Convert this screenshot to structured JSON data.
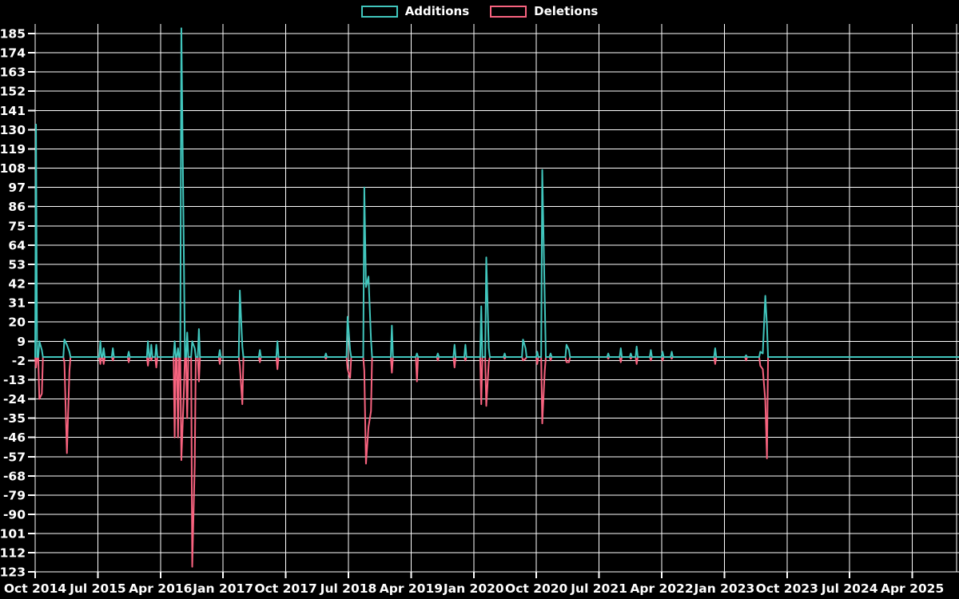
{
  "colors": {
    "additions": "#41c6bd",
    "deletions": "#f8637f",
    "background": "#000000",
    "grid": "#ffffff",
    "text": "#ffffff"
  },
  "chart_data": {
    "type": "line",
    "title": "",
    "xlabel": "",
    "ylabel": "",
    "legend_position": "top-center",
    "grid": true,
    "series": [
      {
        "name": "Additions",
        "color_key": "additions",
        "direction": "up"
      },
      {
        "name": "Deletions",
        "color_key": "deletions",
        "direction": "down"
      }
    ],
    "y_axis": {
      "tick_values": [
        185,
        174,
        163,
        152,
        141,
        130,
        119,
        108,
        97,
        86,
        75,
        64,
        53,
        42,
        31,
        20,
        9,
        -2,
        -13,
        -24,
        -35,
        -46,
        -57,
        -68,
        -79,
        -90,
        -101,
        -112,
        -123
      ]
    },
    "x_axis": {
      "tick_labels": [
        "Oct 2014",
        "Jul 2015",
        "Apr 2016",
        "Jan 2017",
        "Oct 2017",
        "Jul 2018",
        "Apr 2019",
        "Jan 2020",
        "Oct 2020",
        "Jul 2021",
        "Apr 2022",
        "Jan 2023",
        "Oct 2023",
        "Jul 2024",
        "Apr 2025"
      ],
      "start_year_decimal": 2014.75,
      "years_per_tick": 0.75,
      "end_year_decimal": 2025.81
    },
    "points_format": [
      "t_decimal_year",
      "additions",
      "deletions_magnitude"
    ],
    "points": [
      [
        2014.76,
        133,
        6
      ],
      [
        2014.8,
        9,
        24
      ],
      [
        2014.83,
        4,
        21
      ],
      [
        2015.1,
        10,
        3
      ],
      [
        2015.13,
        7,
        55
      ],
      [
        2015.16,
        3,
        8
      ],
      [
        2015.53,
        9,
        4
      ],
      [
        2015.57,
        5,
        4
      ],
      [
        2015.68,
        5,
        2
      ],
      [
        2015.87,
        3,
        3
      ],
      [
        2016.1,
        9,
        5
      ],
      [
        2016.14,
        7,
        2
      ],
      [
        2016.2,
        7,
        6
      ],
      [
        2016.42,
        9,
        46
      ],
      [
        2016.46,
        5,
        46
      ],
      [
        2016.5,
        188,
        59
      ],
      [
        2016.53,
        57,
        20
      ],
      [
        2016.57,
        14,
        35
      ],
      [
        2016.63,
        9,
        120
      ],
      [
        2016.66,
        5,
        62
      ],
      [
        2016.71,
        16,
        14
      ],
      [
        2016.96,
        4,
        4
      ],
      [
        2017.2,
        38,
        5
      ],
      [
        2017.23,
        6,
        27
      ],
      [
        2017.44,
        4,
        3
      ],
      [
        2017.65,
        9,
        7
      ],
      [
        2018.23,
        2,
        1
      ],
      [
        2018.49,
        23,
        7
      ],
      [
        2018.52,
        4,
        12
      ],
      [
        2018.69,
        97,
        8
      ],
      [
        2018.71,
        40,
        61
      ],
      [
        2018.74,
        46,
        40
      ],
      [
        2018.77,
        10,
        31
      ],
      [
        2019.02,
        18,
        9
      ],
      [
        2019.32,
        2,
        14
      ],
      [
        2019.57,
        2,
        2
      ],
      [
        2019.77,
        7,
        6
      ],
      [
        2019.9,
        7,
        2
      ],
      [
        2020.09,
        29,
        27
      ],
      [
        2020.15,
        57,
        28
      ],
      [
        2020.18,
        5,
        3
      ],
      [
        2020.37,
        2,
        1
      ],
      [
        2020.59,
        10,
        2
      ],
      [
        2020.62,
        5,
        1
      ],
      [
        2020.76,
        3,
        4
      ],
      [
        2020.82,
        107,
        38
      ],
      [
        2020.85,
        33,
        8
      ],
      [
        2020.92,
        2,
        2
      ],
      [
        2021.11,
        7,
        3
      ],
      [
        2021.14,
        4,
        3
      ],
      [
        2021.61,
        2,
        1
      ],
      [
        2021.76,
        5,
        3
      ],
      [
        2021.88,
        2,
        1
      ],
      [
        2021.95,
        6,
        4
      ],
      [
        2022.12,
        4,
        2
      ],
      [
        2022.26,
        3,
        2
      ],
      [
        2022.37,
        3,
        1
      ],
      [
        2022.89,
        5,
        4
      ],
      [
        2023.26,
        1,
        2
      ],
      [
        2023.43,
        3,
        5
      ],
      [
        2023.46,
        2,
        7
      ],
      [
        2023.49,
        35,
        25
      ],
      [
        2023.51,
        18,
        58
      ]
    ]
  }
}
